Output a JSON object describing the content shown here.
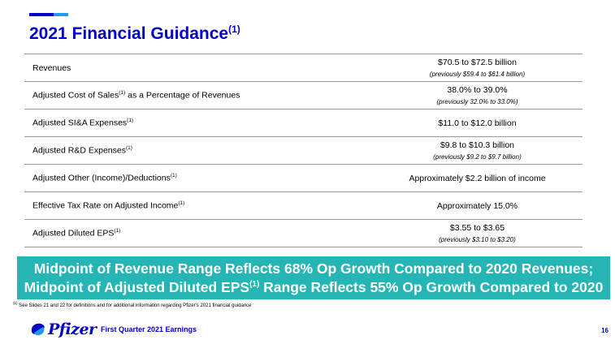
{
  "colors": {
    "brand_blue": "#0000c9",
    "accent_light": "#1e9bf0",
    "banner_teal": "#26b5b5"
  },
  "title": {
    "text": "2021 Financial Guidance",
    "sup": "(1)"
  },
  "rows": [
    {
      "label": "Revenues",
      "label_sup": "",
      "value": "$70.5 to $72.5 billion",
      "previous": "(previously $59.4 to $61.4 billion)"
    },
    {
      "label": "Adjusted Cost of Sales",
      "label_sup": "(1)",
      "label_suffix": " as a Percentage of Revenues",
      "value": "38.0% to 39.0%",
      "previous": "(previously 32.0% to 33.0%)"
    },
    {
      "label": "Adjusted SI&A Expenses",
      "label_sup": "(1)",
      "value": "$11.0 to $12.0 billion",
      "previous": ""
    },
    {
      "label": "Adjusted R&D Expenses",
      "label_sup": "(1)",
      "value": "$9.8 to $10.3 billion",
      "previous": "(previously $9.2 to $9.7 billion)"
    },
    {
      "label": "Adjusted Other (Income)/Deductions",
      "label_sup": "(1)",
      "value": "Approximately $2.2 billion of income",
      "previous": ""
    },
    {
      "label": "Effective Tax Rate on Adjusted Income",
      "label_sup": "(1)",
      "value": "Approximately 15.0%",
      "previous": ""
    },
    {
      "label": "Adjusted Diluted EPS",
      "label_sup": "(1)",
      "value": "$3.55 to $3.65",
      "previous": "(previously $3.10 to $3.20)"
    }
  ],
  "banner": {
    "line1": "Midpoint of Revenue Range Reflects 68% Op Growth Compared to 2020 Revenues;",
    "line2_pre": "Midpoint of Adjusted Diluted EPS",
    "line2_sup": "(1)",
    "line2_post": " Range Reflects 55% Op Growth Compared to 2020"
  },
  "footnote": {
    "sup": "(1)",
    "text": " See Slides 21 and 22 for definitions and for additional information regarding Pfizer's 2021 financial guidance"
  },
  "footer": {
    "logo_text": "Pfizer",
    "label": "First Quarter 2021 Earnings",
    "page": "16"
  }
}
